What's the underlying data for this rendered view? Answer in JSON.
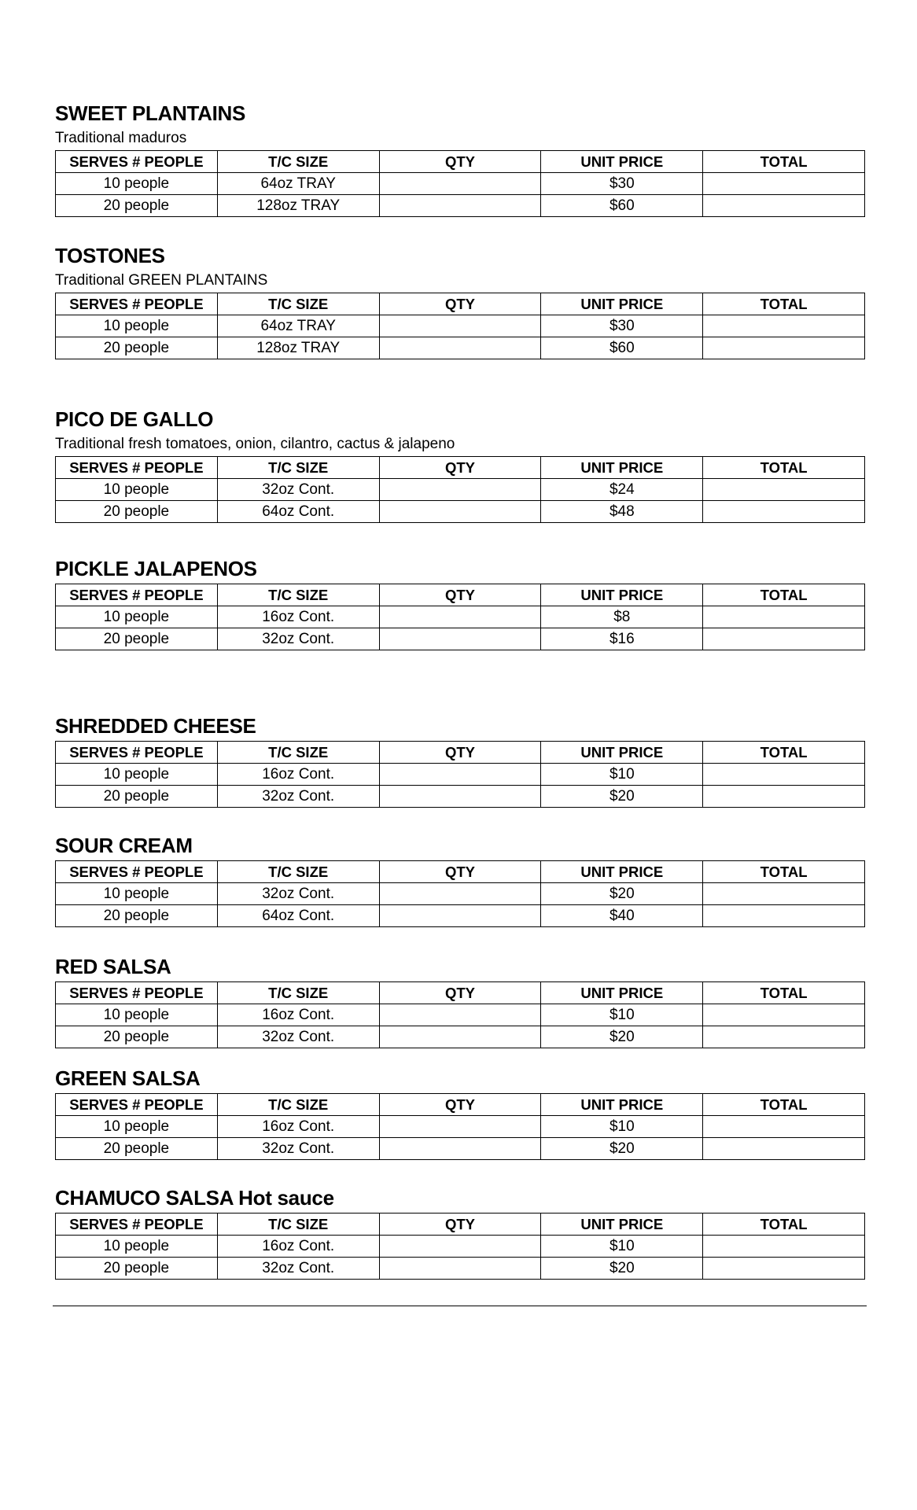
{
  "columns": [
    "SERVES # PEOPLE",
    "T/C SIZE",
    "QTY",
    "UNIT PRICE",
    "TOTAL"
  ],
  "sections": [
    {
      "title": "SWEET PLANTAINS",
      "description": "Traditional maduros",
      "rows": [
        [
          "10 people",
          "64oz TRAY",
          "",
          "$30",
          ""
        ],
        [
          "20 people",
          "128oz TRAY",
          "",
          "$60",
          ""
        ]
      ]
    },
    {
      "title": "TOSTONES",
      "description": "Traditional GREEN PLANTAINS",
      "rows": [
        [
          "10 people",
          "64oz TRAY",
          "",
          "$30",
          ""
        ],
        [
          "20 people",
          "128oz TRAY",
          "",
          "$60",
          ""
        ]
      ]
    },
    {
      "title": "PICO DE GALLO",
      "description": "Traditional fresh tomatoes, onion, cilantro, cactus & jalapeno",
      "rows": [
        [
          "10 people",
          "32oz Cont.",
          "",
          "$24",
          ""
        ],
        [
          "20 people",
          "64oz Cont.",
          "",
          "$48",
          ""
        ]
      ]
    },
    {
      "title": "PICKLE JALAPENOS",
      "description": "",
      "rows": [
        [
          "10 people",
          "16oz Cont.",
          "",
          "$8",
          ""
        ],
        [
          "20 people",
          "32oz Cont.",
          "",
          "$16",
          ""
        ]
      ]
    },
    {
      "title": "SHREDDED CHEESE",
      "description": "",
      "rows": [
        [
          "10 people",
          "16oz Cont.",
          "",
          "$10",
          ""
        ],
        [
          "20 people",
          "32oz Cont.",
          "",
          "$20",
          ""
        ]
      ]
    },
    {
      "title": "SOUR CREAM",
      "description": "",
      "rows": [
        [
          "10 people",
          "32oz Cont.",
          "",
          "$20",
          ""
        ],
        [
          "20 people",
          "64oz Cont.",
          "",
          "$40",
          ""
        ]
      ]
    },
    {
      "title": "RED SALSA",
      "description": "",
      "rows": [
        [
          "10 people",
          "16oz Cont.",
          "",
          "$10",
          ""
        ],
        [
          "20 people",
          "32oz Cont.",
          "",
          "$20",
          ""
        ]
      ]
    },
    {
      "title": "GREEN SALSA",
      "description": "",
      "rows": [
        [
          "10 people",
          "16oz Cont.",
          "",
          "$10",
          ""
        ],
        [
          "20 people",
          "32oz Cont.",
          "",
          "$20",
          ""
        ]
      ]
    },
    {
      "title": "CHAMUCO SALSA Hot sauce",
      "description": "",
      "rows": [
        [
          "10 people",
          "16oz Cont.",
          "",
          "$10",
          ""
        ],
        [
          "20 people",
          "32oz Cont.",
          "",
          "$20",
          ""
        ]
      ]
    }
  ]
}
